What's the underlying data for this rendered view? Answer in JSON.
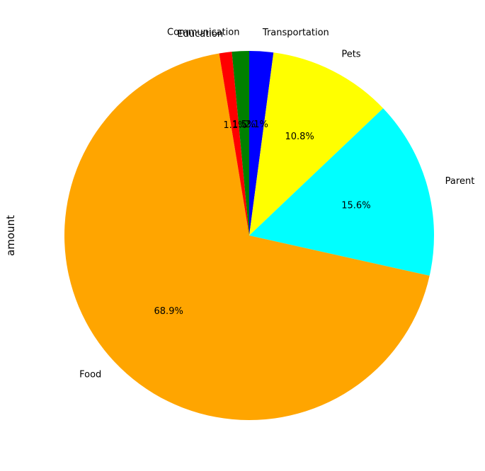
{
  "chart_data": {
    "type": "pie",
    "ylabel": "amount",
    "categories": [
      "Transportation",
      "Pets",
      "Parent",
      "Food",
      "Education",
      "Communication"
    ],
    "values": [
      2.1,
      10.8,
      15.6,
      68.9,
      1.1,
      1.5
    ],
    "pct_labels": [
      "2.1%",
      "10.8%",
      "15.6%",
      "68.9%",
      "1.1%",
      "1.5%"
    ],
    "colors": [
      "#0000ff",
      "#ffff00",
      "#00ffff",
      "#ffa500",
      "#ff0000",
      "#008000"
    ],
    "start_angle_deg": 90,
    "direction": "clockwise"
  }
}
